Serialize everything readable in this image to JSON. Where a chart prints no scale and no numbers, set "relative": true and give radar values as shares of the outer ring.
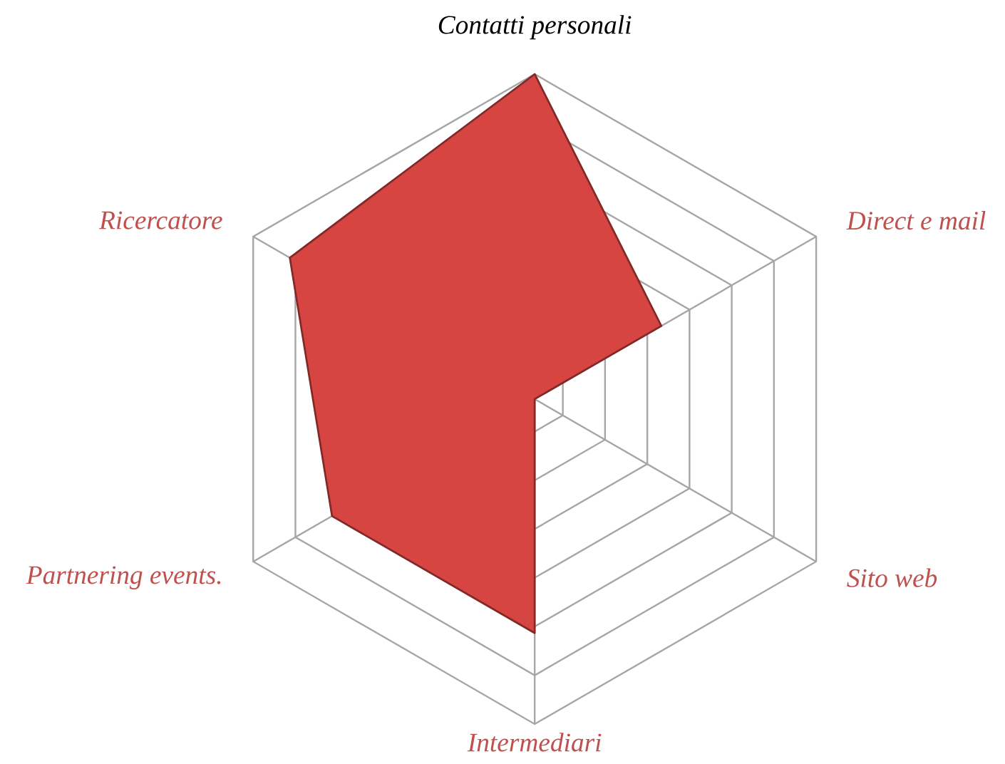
{
  "chart_data": {
    "type": "radar",
    "relative": true,
    "grid": true,
    "categories": [
      "Contatti personali",
      "Direct e mail",
      "Sito web",
      "Intermediari",
      "Partnering events.",
      "Ricercatore"
    ],
    "series": [
      {
        "color": "#d64541",
        "values": [
          1.0,
          0.45,
          0.0,
          0.72,
          0.72,
          0.87
        ]
      }
    ]
  }
}
